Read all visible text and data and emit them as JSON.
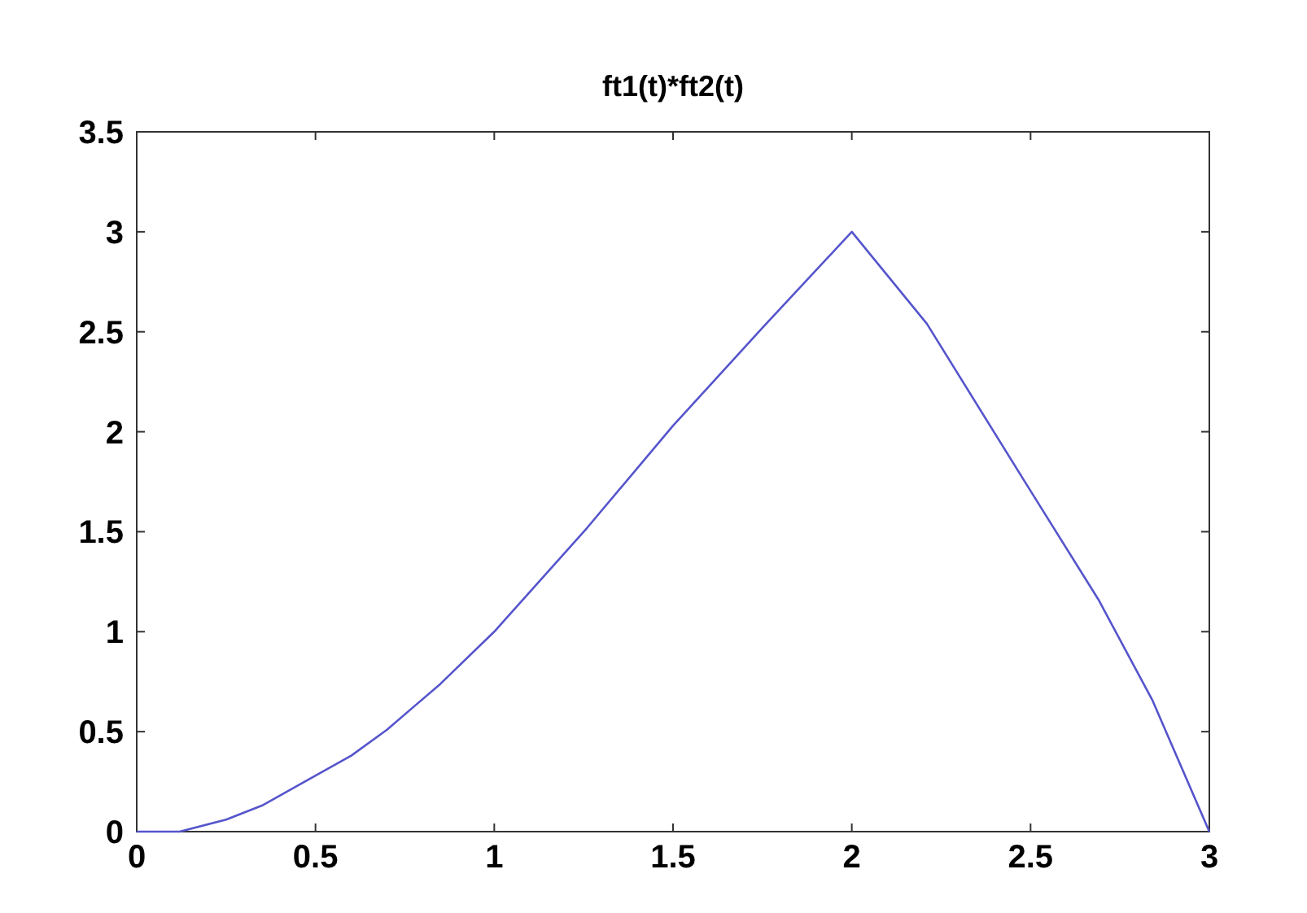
{
  "chart_data": {
    "type": "line",
    "title": "ft1(t)*ft2(t)",
    "x": [
      0,
      0.12,
      0.25,
      0.35,
      0.49,
      0.6,
      0.7,
      0.85,
      1.0,
      1.26,
      1.5,
      1.75,
      2.0,
      2.21,
      2.47,
      2.69,
      2.84,
      3.0
    ],
    "series": [
      {
        "color": "#5555cc",
        "values": [
          0,
          0,
          0.06,
          0.13,
          0.27,
          0.38,
          0.51,
          0.74,
          1.0,
          1.52,
          2.03,
          2.52,
          3.0,
          2.54,
          1.79,
          1.16,
          0.66,
          0
        ]
      }
    ],
    "xlim": [
      0,
      3
    ],
    "xticks": [
      0,
      0.5,
      1,
      1.5,
      2,
      2.5,
      3
    ],
    "ylim": [
      0,
      3.5
    ],
    "yticks": [
      0,
      0.5,
      1,
      1.5,
      2,
      2.5,
      3,
      3.5
    ],
    "grid": false,
    "marker": "none",
    "line_style": "solid"
  }
}
